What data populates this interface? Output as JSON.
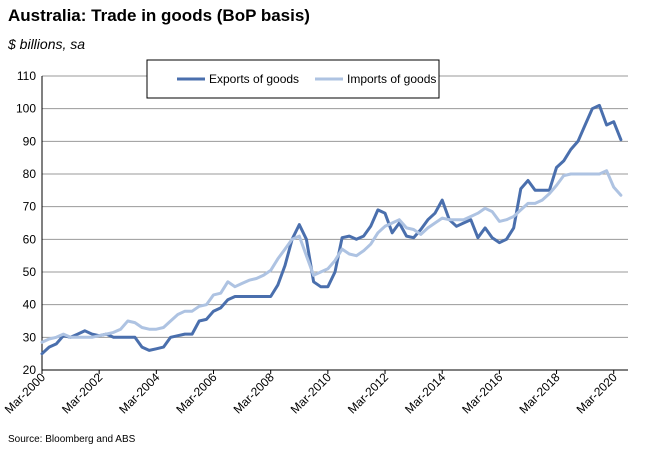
{
  "chart_data": {
    "type": "line",
    "title": "Australia: Trade in goods (BoP basis)",
    "subtitle": "$ billions, sa",
    "source": "Source: Bloomberg and ABS",
    "ylim": [
      20,
      110
    ],
    "yticks": [
      20,
      30,
      40,
      50,
      60,
      70,
      80,
      90,
      100,
      110
    ],
    "xlim": [
      2000.0,
      2020.5
    ],
    "xticks": [
      {
        "label": "Mar-2000",
        "x": 2000.0
      },
      {
        "label": "Mar-2002",
        "x": 2002.0
      },
      {
        "label": "Mar-2004",
        "x": 2004.0
      },
      {
        "label": "Mar-2006",
        "x": 2006.0
      },
      {
        "label": "Mar-2008",
        "x": 2008.0
      },
      {
        "label": "Mar-2010",
        "x": 2010.0
      },
      {
        "label": "Mar-2012",
        "x": 2012.0
      },
      {
        "label": "Mar-2014",
        "x": 2014.0
      },
      {
        "label": "Mar-2016",
        "x": 2016.0
      },
      {
        "label": "Mar-2018",
        "x": 2018.0
      },
      {
        "label": "Mar-2020",
        "x": 2020.0
      }
    ],
    "grid": "horizontal",
    "legend": "top-center",
    "series": [
      {
        "name": "Exports of goods",
        "color": "#4a6fad",
        "points": [
          [
            2000.0,
            25
          ],
          [
            2000.25,
            27
          ],
          [
            2000.5,
            28
          ],
          [
            2000.75,
            30.5
          ],
          [
            2001.0,
            30
          ],
          [
            2001.25,
            31
          ],
          [
            2001.5,
            32
          ],
          [
            2001.75,
            31
          ],
          [
            2002.0,
            30.5
          ],
          [
            2002.25,
            31
          ],
          [
            2002.5,
            30
          ],
          [
            2002.75,
            30
          ],
          [
            2003.0,
            30
          ],
          [
            2003.25,
            30
          ],
          [
            2003.5,
            27
          ],
          [
            2003.75,
            26
          ],
          [
            2004.0,
            26.5
          ],
          [
            2004.25,
            27
          ],
          [
            2004.5,
            30
          ],
          [
            2004.75,
            30.5
          ],
          [
            2005.0,
            31
          ],
          [
            2005.25,
            31
          ],
          [
            2005.5,
            35
          ],
          [
            2005.75,
            35.5
          ],
          [
            2006.0,
            38
          ],
          [
            2006.25,
            39
          ],
          [
            2006.5,
            41.5
          ],
          [
            2006.75,
            42.5
          ],
          [
            2007.0,
            42.5
          ],
          [
            2007.25,
            42.5
          ],
          [
            2007.5,
            42.5
          ],
          [
            2007.75,
            42.5
          ],
          [
            2008.0,
            42.5
          ],
          [
            2008.25,
            46
          ],
          [
            2008.5,
            52
          ],
          [
            2008.75,
            60
          ],
          [
            2009.0,
            64.5
          ],
          [
            2009.25,
            60
          ],
          [
            2009.5,
            47
          ],
          [
            2009.75,
            45.5
          ],
          [
            2010.0,
            45.5
          ],
          [
            2010.25,
            50
          ],
          [
            2010.5,
            60.5
          ],
          [
            2010.75,
            61
          ],
          [
            2011.0,
            60
          ],
          [
            2011.25,
            61
          ],
          [
            2011.5,
            64
          ],
          [
            2011.75,
            69
          ],
          [
            2012.0,
            68
          ],
          [
            2012.25,
            62
          ],
          [
            2012.5,
            65
          ],
          [
            2012.75,
            61
          ],
          [
            2013.0,
            60.5
          ],
          [
            2013.25,
            63
          ],
          [
            2013.5,
            66
          ],
          [
            2013.75,
            68
          ],
          [
            2014.0,
            72
          ],
          [
            2014.25,
            66
          ],
          [
            2014.5,
            64
          ],
          [
            2014.75,
            65
          ],
          [
            2015.0,
            66
          ],
          [
            2015.25,
            60.5
          ],
          [
            2015.5,
            63.5
          ],
          [
            2015.75,
            60.5
          ],
          [
            2016.0,
            59
          ],
          [
            2016.25,
            60
          ],
          [
            2016.5,
            63.5
          ],
          [
            2016.75,
            75.5
          ],
          [
            2017.0,
            78
          ],
          [
            2017.25,
            75
          ],
          [
            2017.5,
            75
          ],
          [
            2017.75,
            75
          ],
          [
            2018.0,
            82
          ],
          [
            2018.25,
            84
          ],
          [
            2018.5,
            87.5
          ],
          [
            2018.75,
            90
          ],
          [
            2019.0,
            95
          ],
          [
            2019.25,
            100
          ],
          [
            2019.5,
            101
          ],
          [
            2019.75,
            95
          ],
          [
            2020.0,
            96
          ],
          [
            2020.25,
            90.5
          ]
        ]
      },
      {
        "name": "Imports of goods",
        "color": "#aec3e2",
        "points": [
          [
            2000.0,
            28.5
          ],
          [
            2000.25,
            29.5
          ],
          [
            2000.5,
            30
          ],
          [
            2000.75,
            31
          ],
          [
            2001.0,
            30
          ],
          [
            2001.25,
            30
          ],
          [
            2001.5,
            30
          ],
          [
            2001.75,
            30
          ],
          [
            2002.0,
            30.5
          ],
          [
            2002.25,
            31
          ],
          [
            2002.5,
            31.5
          ],
          [
            2002.75,
            32.5
          ],
          [
            2003.0,
            35
          ],
          [
            2003.25,
            34.5
          ],
          [
            2003.5,
            33
          ],
          [
            2003.75,
            32.5
          ],
          [
            2004.0,
            32.5
          ],
          [
            2004.25,
            33
          ],
          [
            2004.5,
            35
          ],
          [
            2004.75,
            37
          ],
          [
            2005.0,
            38
          ],
          [
            2005.25,
            38
          ],
          [
            2005.5,
            39.5
          ],
          [
            2005.75,
            40
          ],
          [
            2006.0,
            43
          ],
          [
            2006.25,
            43.5
          ],
          [
            2006.5,
            47
          ],
          [
            2006.75,
            45.5
          ],
          [
            2007.0,
            46.5
          ],
          [
            2007.25,
            47.5
          ],
          [
            2007.5,
            48
          ],
          [
            2007.75,
            49
          ],
          [
            2008.0,
            50.5
          ],
          [
            2008.25,
            54
          ],
          [
            2008.5,
            57
          ],
          [
            2008.75,
            60
          ],
          [
            2009.0,
            61
          ],
          [
            2009.25,
            55
          ],
          [
            2009.5,
            49
          ],
          [
            2009.75,
            50
          ],
          [
            2010.0,
            51
          ],
          [
            2010.25,
            53.5
          ],
          [
            2010.5,
            57
          ],
          [
            2010.75,
            55.5
          ],
          [
            2011.0,
            55
          ],
          [
            2011.25,
            56.5
          ],
          [
            2011.5,
            58.5
          ],
          [
            2011.75,
            62
          ],
          [
            2012.0,
            64
          ],
          [
            2012.25,
            65
          ],
          [
            2012.5,
            66
          ],
          [
            2012.75,
            63.5
          ],
          [
            2013.0,
            63
          ],
          [
            2013.25,
            61.5
          ],
          [
            2013.5,
            63.5
          ],
          [
            2013.75,
            65
          ],
          [
            2014.0,
            66.5
          ],
          [
            2014.25,
            66
          ],
          [
            2014.5,
            66
          ],
          [
            2014.75,
            66
          ],
          [
            2015.0,
            67
          ],
          [
            2015.25,
            68
          ],
          [
            2015.5,
            69.5
          ],
          [
            2015.75,
            68.5
          ],
          [
            2016.0,
            65.5
          ],
          [
            2016.25,
            66
          ],
          [
            2016.5,
            67
          ],
          [
            2016.75,
            69
          ],
          [
            2017.0,
            71
          ],
          [
            2017.25,
            71
          ],
          [
            2017.5,
            72
          ],
          [
            2017.75,
            74
          ],
          [
            2018.0,
            76.5
          ],
          [
            2018.25,
            79.5
          ],
          [
            2018.5,
            80
          ],
          [
            2018.75,
            80
          ],
          [
            2019.0,
            80
          ],
          [
            2019.25,
            80
          ],
          [
            2019.5,
            80
          ],
          [
            2019.75,
            81
          ],
          [
            2020.0,
            76
          ],
          [
            2020.25,
            73.5
          ]
        ]
      }
    ]
  }
}
